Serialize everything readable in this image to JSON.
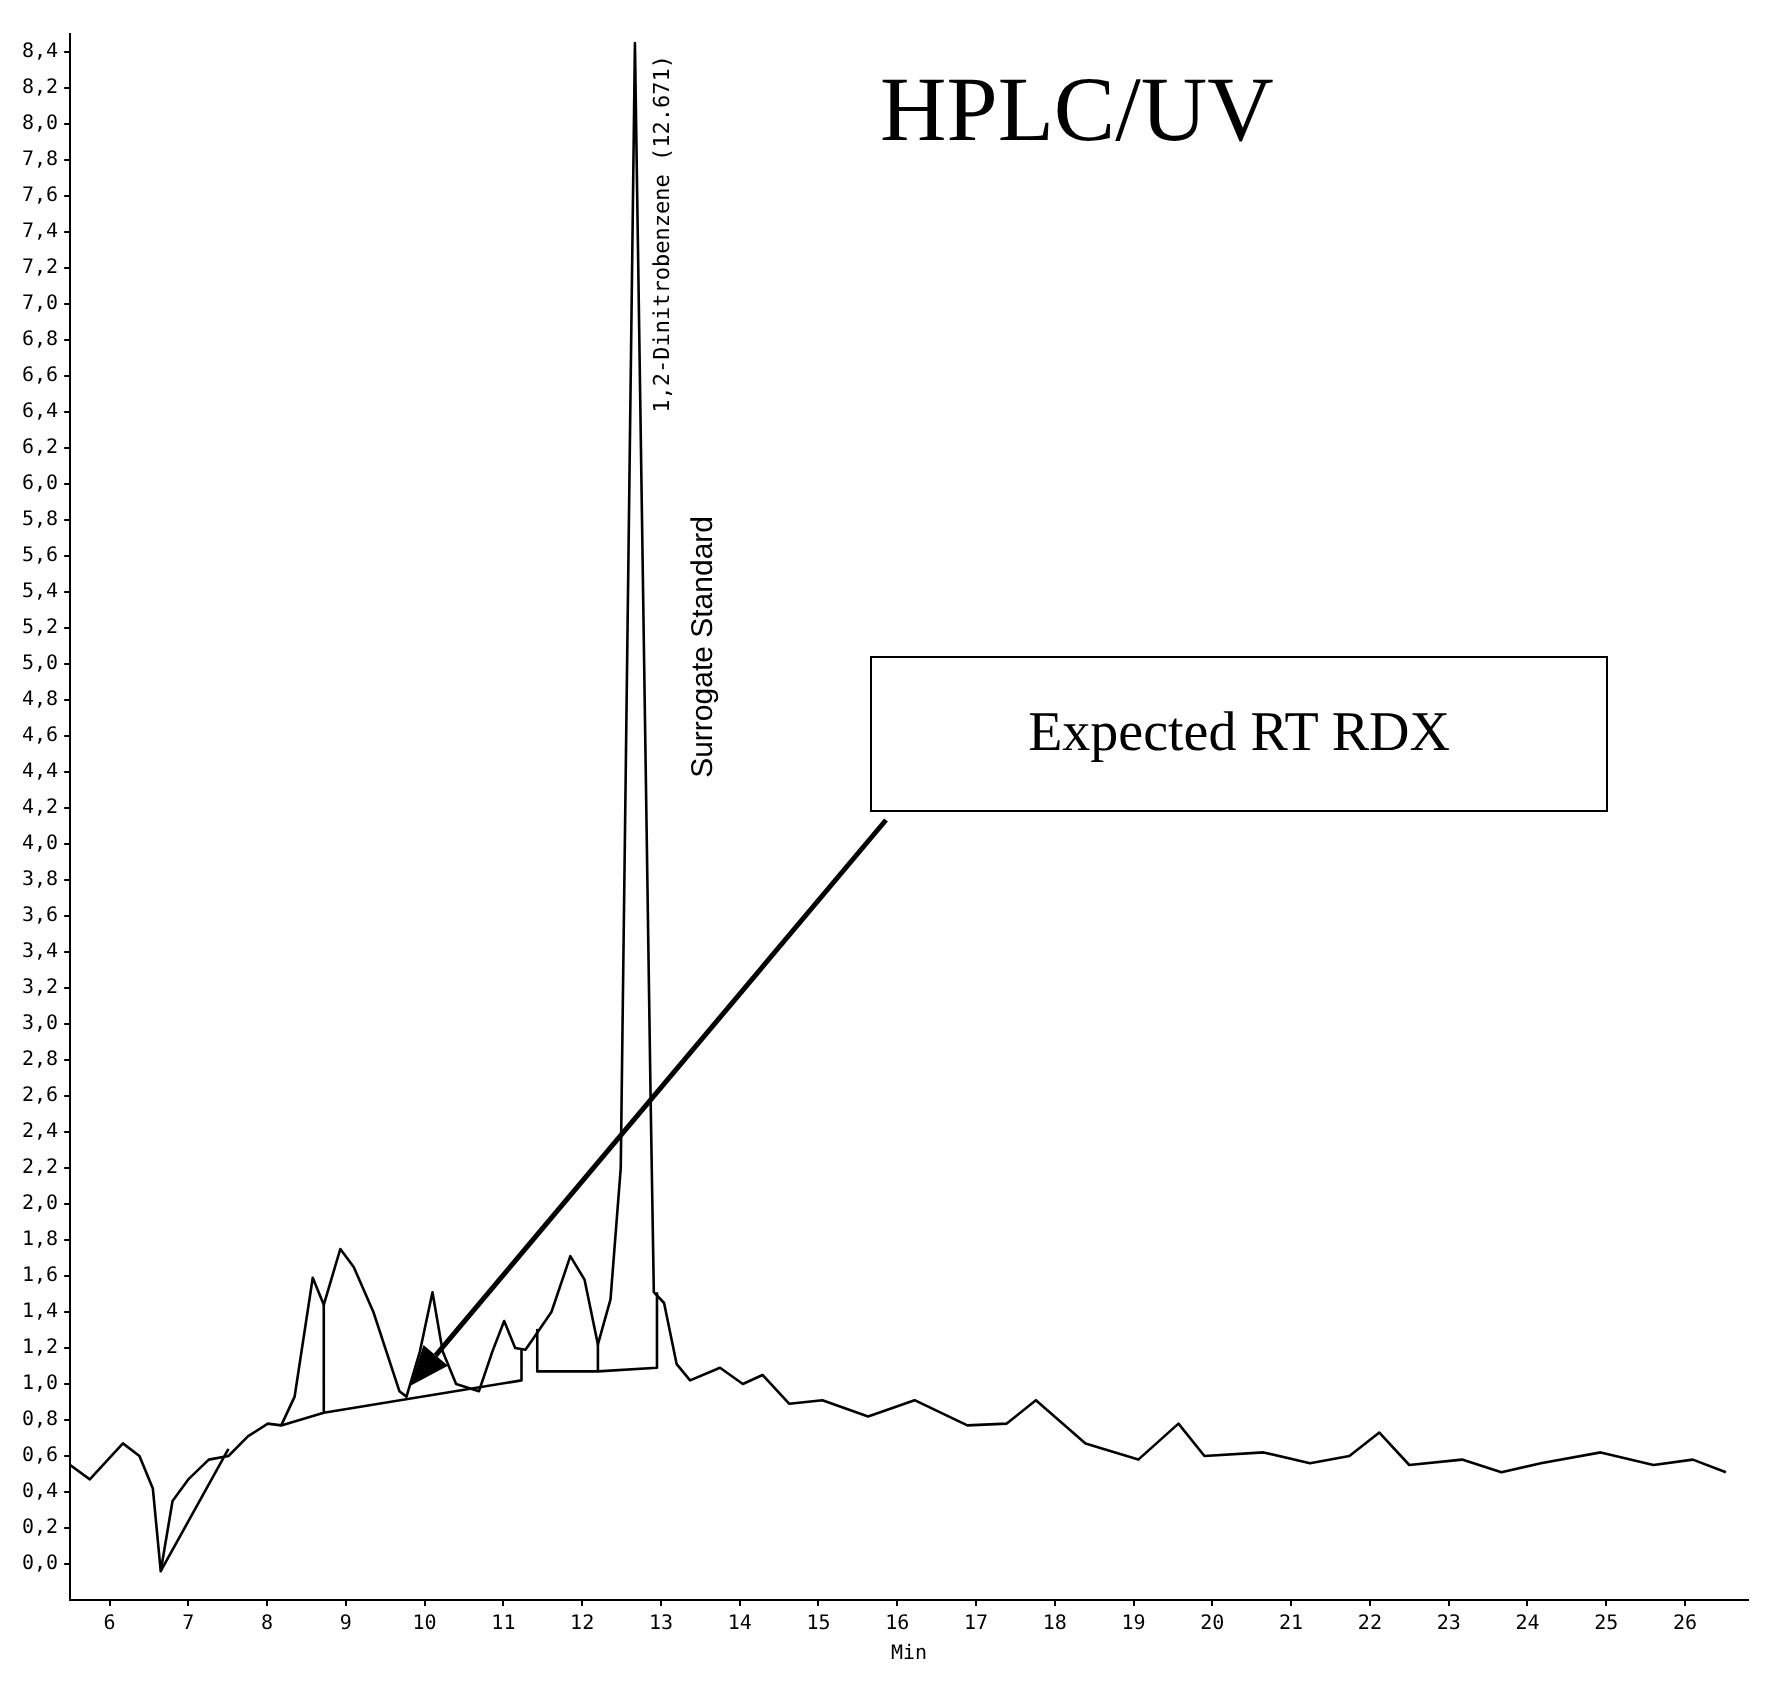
{
  "chart_data": {
    "type": "line",
    "title": "HPLC/UV",
    "xlabel": "Min",
    "xlim": [
      5.5,
      26.8
    ],
    "ylim": [
      -0.2,
      8.5
    ],
    "xticks": [
      6,
      7,
      8,
      9,
      10,
      11,
      12,
      13,
      14,
      15,
      16,
      17,
      18,
      19,
      20,
      21,
      22,
      23,
      24,
      25,
      26
    ],
    "yticks": [
      {
        "value": 0,
        "label": "0,0"
      },
      {
        "value": 0.2,
        "label": "0,2"
      },
      {
        "value": 0.4,
        "label": "0,4"
      },
      {
        "value": 0.6,
        "label": "0,6"
      },
      {
        "value": 0.8,
        "label": "0,8"
      },
      {
        "value": 1.0,
        "label": "1,0"
      },
      {
        "value": 1.2,
        "label": "1,2"
      },
      {
        "value": 1.4,
        "label": "1,4"
      },
      {
        "value": 1.6,
        "label": "1,6"
      },
      {
        "value": 1.8,
        "label": "1,8"
      },
      {
        "value": 2.0,
        "label": "2,0"
      },
      {
        "value": 2.2,
        "label": "2,2"
      },
      {
        "value": 2.4,
        "label": "2,4"
      },
      {
        "value": 2.6,
        "label": "2,6"
      },
      {
        "value": 2.8,
        "label": "2,8"
      },
      {
        "value": 3.0,
        "label": "3,0"
      },
      {
        "value": 3.2,
        "label": "3,2"
      },
      {
        "value": 3.4,
        "label": "3,4"
      },
      {
        "value": 3.6,
        "label": "3,6"
      },
      {
        "value": 3.8,
        "label": "3,8"
      },
      {
        "value": 4.0,
        "label": "4,0"
      },
      {
        "value": 4.2,
        "label": "4,2"
      },
      {
        "value": 4.4,
        "label": "4,4"
      },
      {
        "value": 4.6,
        "label": "4,6"
      },
      {
        "value": 4.8,
        "label": "4,8"
      },
      {
        "value": 5.0,
        "label": "5,0"
      },
      {
        "value": 5.2,
        "label": "5,2"
      },
      {
        "value": 5.4,
        "label": "5,4"
      },
      {
        "value": 5.6,
        "label": "5,6"
      },
      {
        "value": 5.8,
        "label": "5,8"
      },
      {
        "value": 6.0,
        "label": "6,0"
      },
      {
        "value": 6.2,
        "label": "6,2"
      },
      {
        "value": 6.4,
        "label": "6,4"
      },
      {
        "value": 6.6,
        "label": "6,6"
      },
      {
        "value": 6.8,
        "label": "6,8"
      },
      {
        "value": 7.0,
        "label": "7,0"
      },
      {
        "value": 7.2,
        "label": "7,2"
      },
      {
        "value": 7.4,
        "label": "7,4"
      },
      {
        "value": 7.6,
        "label": "7,6"
      },
      {
        "value": 7.8,
        "label": "7,8"
      },
      {
        "value": 8.0,
        "label": "8,0"
      },
      {
        "value": 8.2,
        "label": "8,2"
      },
      {
        "value": 8.4,
        "label": "8,4"
      }
    ],
    "series": [
      {
        "color": "#000000",
        "x": [
          5.5,
          5.75,
          6.17,
          6.38,
          6.55,
          6.65,
          6.8,
          7.0,
          7.26,
          7.51,
          7.76,
          8.01,
          8.18,
          8.35,
          8.58,
          8.72,
          8.93,
          9.1,
          9.35,
          9.68,
          9.77,
          9.94,
          10.1,
          10.23,
          10.4,
          10.69,
          10.86,
          11.01,
          11.15,
          11.28,
          11.36,
          11.61,
          11.85,
          12.03,
          12.2,
          12.36,
          12.49,
          12.67,
          12.87,
          12.91,
          13.04,
          13.2,
          13.37,
          13.75,
          14.04,
          14.29,
          14.63,
          15.05,
          15.63,
          16.22,
          16.89,
          17.39,
          17.76,
          18.39,
          19.06,
          19.57,
          19.9,
          20.65,
          21.24,
          21.74,
          22.12,
          22.5,
          23.17,
          23.67,
          24.17,
          24.93,
          25.6,
          26.1,
          26.52
        ],
        "values": [
          0.55,
          0.47,
          0.67,
          0.6,
          0.42,
          -0.04,
          0.35,
          0.47,
          0.58,
          0.6,
          0.71,
          0.78,
          0.77,
          0.93,
          1.59,
          1.44,
          1.75,
          1.65,
          1.4,
          0.96,
          0.93,
          1.18,
          1.51,
          1.18,
          1.0,
          0.96,
          1.18,
          1.35,
          1.2,
          1.19,
          1.24,
          1.4,
          1.71,
          1.58,
          1.22,
          1.47,
          2.2,
          8.45,
          2.56,
          1.51,
          1.45,
          1.11,
          1.02,
          1.09,
          1.0,
          1.05,
          0.89,
          0.91,
          0.82,
          0.91,
          0.77,
          0.78,
          0.91,
          0.67,
          0.58,
          0.78,
          0.6,
          0.62,
          0.56,
          0.6,
          0.73,
          0.55,
          0.58,
          0.51,
          0.56,
          0.62,
          0.55,
          0.58,
          0.51
        ]
      },
      {
        "color": "#000000",
        "x": [
          6.65,
          7.51,
          7.8,
          8.18,
          8.72,
          8.72,
          8.72,
          11.23,
          11.23,
          11.35,
          11.43,
          11.43,
          12.2,
          12.2,
          12.2,
          12.95,
          12.95
        ],
        "values": [
          -0.04,
          0.64,
          null,
          0.77,
          0.84,
          1.44,
          0.84,
          1.02,
          1.19,
          null,
          1.3,
          1.07,
          1.07,
          1.22,
          1.07,
          1.09,
          1.51
        ]
      }
    ],
    "annotations": [
      {
        "text": "1,2-Dinitrobenzene (12.671)",
        "x": 12.67,
        "y": 8.45
      },
      "Surrogate Standard",
      "Expected RT RDX"
    ]
  }
}
